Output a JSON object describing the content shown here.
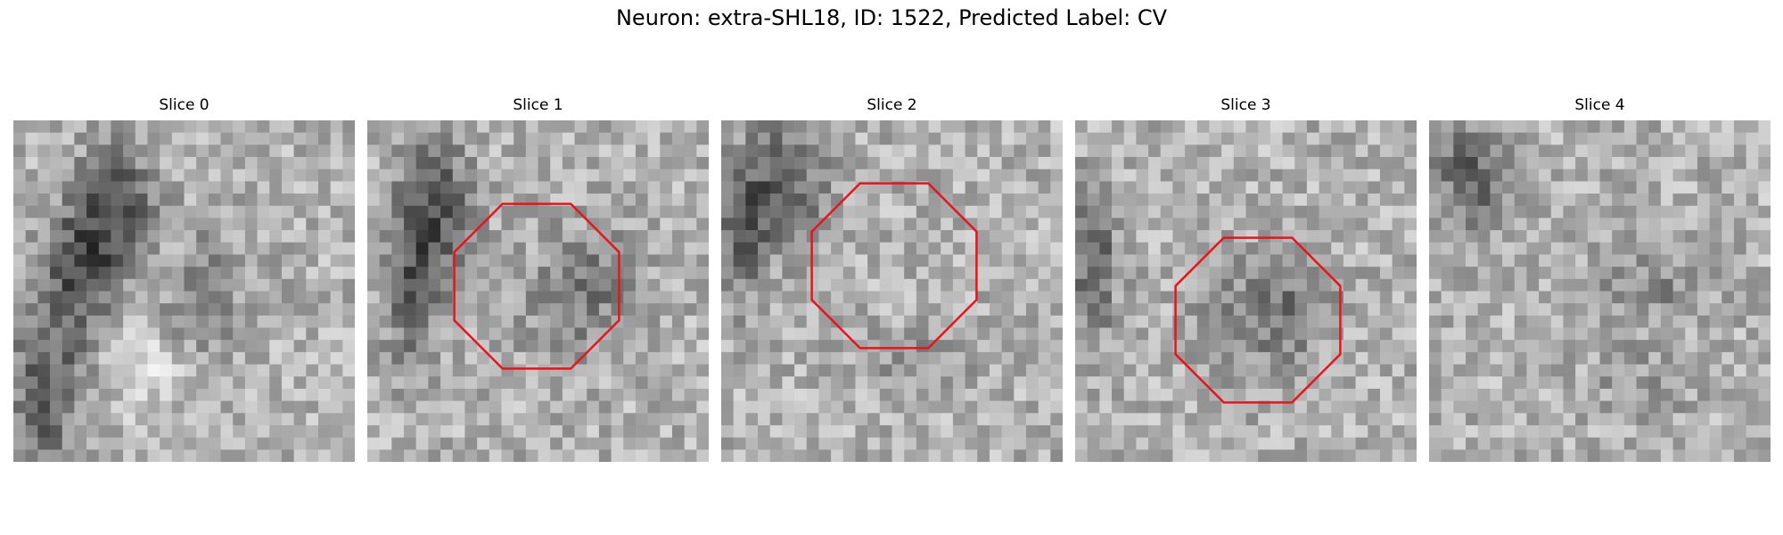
{
  "figure": {
    "title": "Neuron: extra-SHL18, ID: 1522, Predicted Label: CV"
  },
  "panels": [
    {
      "title": "Slice 0",
      "seed": 11,
      "marker": false
    },
    {
      "title": "Slice 1",
      "seed": 23,
      "marker": true
    },
    {
      "title": "Slice 2",
      "seed": 37,
      "marker": true
    },
    {
      "title": "Slice 3",
      "seed": 41,
      "marker": true
    },
    {
      "title": "Slice 4",
      "seed": 59,
      "marker": false
    }
  ],
  "colors": {
    "marker": "#e8141b",
    "background": "#ffffff"
  }
}
